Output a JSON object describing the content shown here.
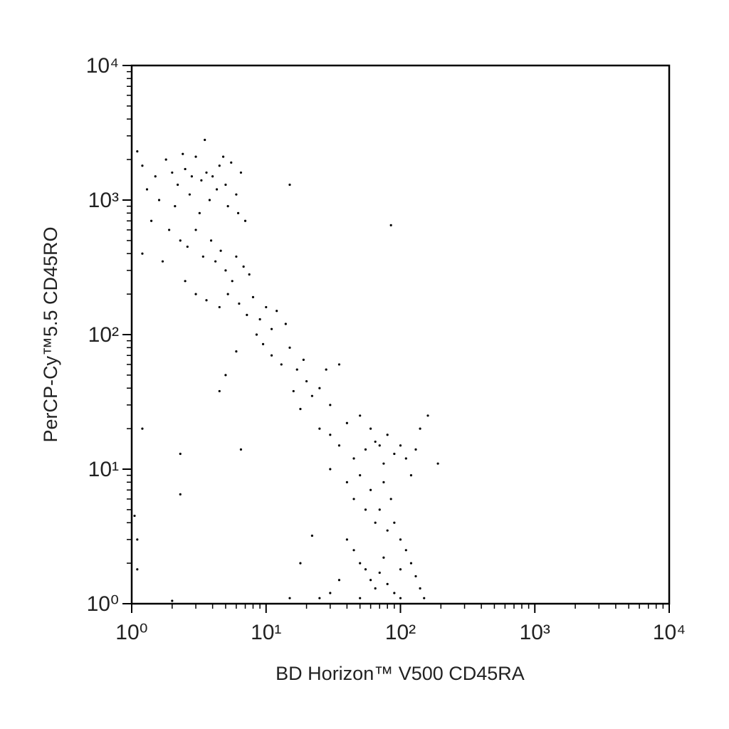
{
  "chart_data": {
    "type": "scatter",
    "x_label": "BD Horizon™ V500 CD45RA",
    "y_label": "PerCP-Cy™5.5 CD45RO",
    "log_x": true,
    "log_y": true,
    "minor_ticks": true,
    "color": "#000000",
    "xlim": [
      1,
      10000
    ],
    "ylim": [
      1,
      10000
    ],
    "xticks": [
      {
        "value": 1,
        "label": "10⁰"
      },
      {
        "value": 10,
        "label": "10¹"
      },
      {
        "value": 100,
        "label": "10²"
      },
      {
        "value": 1000,
        "label": "10³"
      },
      {
        "value": 10000,
        "label": "10⁴"
      }
    ],
    "yticks": [
      {
        "value": 1,
        "label": "10⁰"
      },
      {
        "value": 10,
        "label": "10¹"
      },
      {
        "value": 100,
        "label": "10²"
      },
      {
        "value": 1000,
        "label": "10³"
      },
      {
        "value": 10000,
        "label": "10⁴"
      }
    ],
    "x": [
      1.2,
      1.5,
      1.8,
      2,
      2.2,
      2.5,
      2.8,
      3,
      3.3,
      3.6,
      4,
      4.5,
      5,
      5.5,
      6,
      6.5,
      1.3,
      1.6,
      2.1,
      2.7,
      3.2,
      3.8,
      4.3,
      5.2,
      6.2,
      7,
      1.1,
      2.4,
      3.5,
      4.8,
      1.4,
      1.9,
      1.2,
      1.7,
      2.3,
      2.6,
      3,
      3.4,
      3.9,
      4.2,
      4.6,
      5,
      5.6,
      6,
      6.8,
      7.5,
      2.5,
      3,
      3.6,
      4.5,
      5.2,
      6.3,
      7.2,
      8,
      9,
      10,
      11,
      12,
      14,
      8.5,
      9.5,
      11,
      13,
      15,
      17,
      19,
      6,
      5,
      4.5,
      20,
      22,
      25,
      30,
      28,
      35,
      16,
      18,
      25,
      30,
      35,
      40,
      45,
      50,
      55,
      60,
      65,
      70,
      75,
      80,
      90,
      100,
      110,
      120,
      130,
      140,
      160,
      30,
      40,
      45,
      50,
      55,
      60,
      65,
      70,
      75,
      80,
      85,
      90,
      100,
      110,
      120,
      130,
      40,
      45,
      50,
      55,
      60,
      65,
      70,
      75,
      80,
      30,
      35,
      90,
      100,
      140,
      25,
      50,
      100,
      150,
      22,
      18,
      15,
      15,
      85,
      1.2,
      2.3,
      2.3,
      2,
      190,
      1.1,
      1.1,
      1.05,
      6.5
    ],
    "y": [
      1800,
      1500,
      2000,
      1600,
      1300,
      1700,
      1500,
      2100,
      1400,
      1600,
      1500,
      1800,
      1300,
      1900,
      1100,
      1600,
      1200,
      1000,
      900,
      1100,
      800,
      1000,
      1200,
      900,
      800,
      700,
      2300,
      2200,
      2800,
      2100,
      700,
      600,
      400,
      350,
      500,
      450,
      600,
      380,
      500,
      350,
      420,
      300,
      250,
      380,
      320,
      280,
      250,
      200,
      180,
      160,
      200,
      170,
      140,
      190,
      130,
      160,
      110,
      150,
      120,
      100,
      85,
      70,
      60,
      80,
      55,
      65,
      75,
      50,
      38,
      45,
      35,
      40,
      30,
      55,
      60,
      38,
      28,
      20,
      18,
      15,
      22,
      12,
      25,
      14,
      20,
      16,
      15,
      11,
      18,
      13,
      15,
      12,
      9,
      14,
      20,
      25,
      10,
      8,
      6,
      9,
      5,
      7,
      4,
      5,
      8,
      3.5,
      6,
      4,
      3,
      2.5,
      2,
      1.6,
      3,
      2.5,
      2,
      1.8,
      1.5,
      1.3,
      1.7,
      2.2,
      1.4,
      1.2,
      1.5,
      1.2,
      1.8,
      1.3,
      1.1,
      1.1,
      1.1,
      1.1,
      3.2,
      2,
      1.1,
      1300,
      650,
      20,
      13,
      6.5,
      1.05,
      11,
      1.8,
      3,
      4.5,
      14
    ]
  }
}
